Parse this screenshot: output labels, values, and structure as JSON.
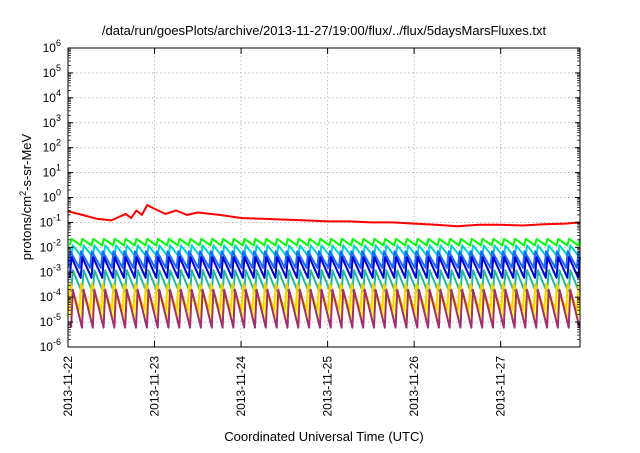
{
  "chart_data": {
    "type": "line",
    "title": "/data/run/goesPlots/archive/2013-11-27/19:00/flux/../flux/5daysMarsFluxes.txt",
    "xlabel": "Coordinated Universal Time (UTC)",
    "ylabel": {
      "prefix": "protons/cm",
      "sup": "2",
      "suffix": "-s-sr-MeV"
    },
    "y_scale": "log",
    "ylim": [
      1e-06,
      1000000.0
    ],
    "y_ticks": [
      {
        "base": "10",
        "exp": "-6",
        "value": 1e-06
      },
      {
        "base": "10",
        "exp": "-5",
        "value": 1e-05
      },
      {
        "base": "10",
        "exp": "-4",
        "value": 0.0001
      },
      {
        "base": "10",
        "exp": "-3",
        "value": 0.001
      },
      {
        "base": "10",
        "exp": "-2",
        "value": 0.01
      },
      {
        "base": "10",
        "exp": "-1",
        "value": 0.1
      },
      {
        "base": "10",
        "exp": "0",
        "value": 1
      },
      {
        "base": "10",
        "exp": "1",
        "value": 10
      },
      {
        "base": "10",
        "exp": "2",
        "value": 100
      },
      {
        "base": "10",
        "exp": "3",
        "value": 1000
      },
      {
        "base": "10",
        "exp": "4",
        "value": 10000
      },
      {
        "base": "10",
        "exp": "5",
        "value": 100000
      },
      {
        "base": "10",
        "exp": "6",
        "value": 1000000
      }
    ],
    "xlim": [
      "2013-11-22T00:00",
      "2013-11-27T22:00"
    ],
    "x_ticks": [
      "2013-11-22",
      "2013-11-23",
      "2013-11-24",
      "2013-11-25",
      "2013-11-26",
      "2013-11-27"
    ],
    "grid": true,
    "legend": "none",
    "series": [
      {
        "color": "#ff0000",
        "style": "smooth",
        "points": [
          [
            "2013-11-22T00:00",
            0.28
          ],
          [
            "2013-11-22T04:00",
            0.2
          ],
          [
            "2013-11-22T08:00",
            0.14
          ],
          [
            "2013-11-22T12:00",
            0.12
          ],
          [
            "2013-11-22T16:00",
            0.22
          ],
          [
            "2013-11-22T17:30",
            0.15
          ],
          [
            "2013-11-22T19:00",
            0.3
          ],
          [
            "2013-11-22T20:30",
            0.2
          ],
          [
            "2013-11-22T22:00",
            0.5
          ],
          [
            "2013-11-23T00:00",
            0.35
          ],
          [
            "2013-11-23T03:00",
            0.22
          ],
          [
            "2013-11-23T06:00",
            0.3
          ],
          [
            "2013-11-23T09:00",
            0.2
          ],
          [
            "2013-11-23T12:00",
            0.25
          ],
          [
            "2013-11-23T18:00",
            0.2
          ],
          [
            "2013-11-24T00:00",
            0.15
          ],
          [
            "2013-11-24T06:00",
            0.14
          ],
          [
            "2013-11-24T12:00",
            0.13
          ],
          [
            "2013-11-24T18:00",
            0.12
          ],
          [
            "2013-11-25T00:00",
            0.11
          ],
          [
            "2013-11-25T06:00",
            0.11
          ],
          [
            "2013-11-25T12:00",
            0.1
          ],
          [
            "2013-11-25T18:00",
            0.1
          ],
          [
            "2013-11-26T00:00",
            0.09
          ],
          [
            "2013-11-26T06:00",
            0.08
          ],
          [
            "2013-11-26T12:00",
            0.07
          ],
          [
            "2013-11-26T18:00",
            0.08
          ],
          [
            "2013-11-27T00:00",
            0.08
          ],
          [
            "2013-11-27T06:00",
            0.075
          ],
          [
            "2013-11-27T12:00",
            0.085
          ],
          [
            "2013-11-27T18:00",
            0.09
          ],
          [
            "2013-11-27T22:00",
            0.1
          ]
        ]
      },
      {
        "color": "#00ff00",
        "style": "sawtooth",
        "high": 0.022,
        "low": 0.012
      },
      {
        "color": "#00cfcf",
        "style": "sawtooth",
        "high": 0.012,
        "low": 0.004
      },
      {
        "color": "#1d6bff",
        "style": "sawtooth",
        "high": 0.007,
        "low": 0.0015
      },
      {
        "color": "#0000d0",
        "style": "sawtooth",
        "high": 0.004,
        "low": 0.0006
      },
      {
        "color": "#20b8a0",
        "style": "sawtooth",
        "high": 0.0012,
        "low": 0.00015
      },
      {
        "color": "#ffd000",
        "style": "sawtooth",
        "high": 0.00035,
        "low": 3e-05
      },
      {
        "color": "#ffff30",
        "style": "sawtooth",
        "high": 0.00015,
        "low": 1.5e-05
      },
      {
        "color": "#a03070",
        "style": "sawtooth",
        "high": 0.0002,
        "low": 6e-06
      }
    ]
  }
}
